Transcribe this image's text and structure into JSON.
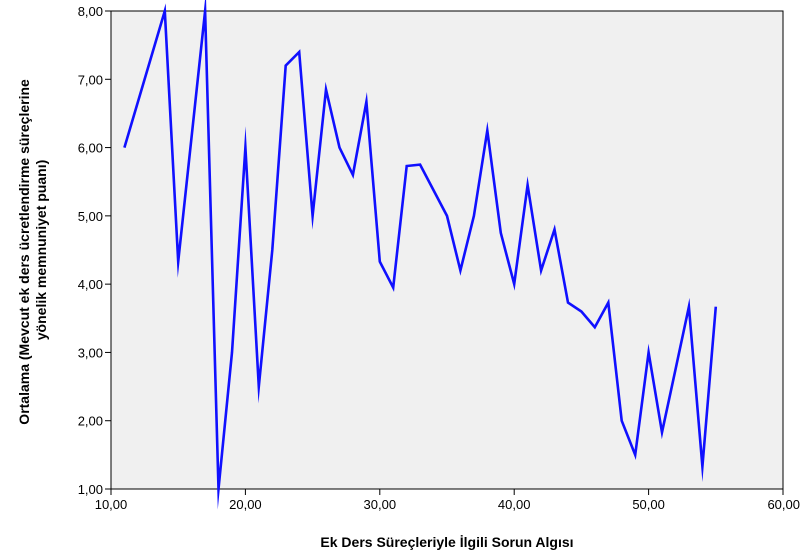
{
  "chart_data": {
    "type": "line",
    "title": "",
    "xlabel": "Ek Ders Süreçleriyle İlgili Sorun Algısı",
    "ylabel": "Ortalama (Mevcut ek ders ücretlendirme süreçlerine yönelik memnuniyet puanı)",
    "ylabel_lines": [
      "Ortalama (Mevcut ek ders ücretlendirme süreçlerine",
      "yönelik memnuniyet puanı)"
    ],
    "xlim": [
      10,
      60
    ],
    "ylim": [
      1,
      8
    ],
    "xticks": [
      10,
      20,
      30,
      40,
      50,
      60
    ],
    "yticks": [
      1,
      2,
      3,
      4,
      5,
      6,
      7,
      8
    ],
    "xtick_labels": [
      "10,00",
      "20,00",
      "30,00",
      "40,00",
      "50,00",
      "60,00"
    ],
    "ytick_labels": [
      "1,00",
      "2,00",
      "3,00",
      "4,00",
      "5,00",
      "6,00",
      "7,00",
      "8,00"
    ],
    "grid": false,
    "plot_background": "#f0f0f0",
    "line_color": "#1010ff",
    "series": [
      {
        "x": [
          11,
          14,
          15,
          17,
          18,
          19,
          20,
          21,
          22,
          23,
          24,
          25,
          26,
          27,
          28,
          29,
          30,
          31,
          32,
          33,
          35,
          36,
          37,
          38,
          39,
          40,
          41,
          42,
          43,
          44,
          45,
          46,
          47,
          48,
          49,
          50,
          51,
          52,
          53,
          54,
          55
        ],
        "y": [
          6.0,
          8.0,
          4.33,
          8.0,
          1.0,
          3.0,
          6.0,
          2.5,
          4.5,
          7.2,
          7.4,
          5.0,
          6.85,
          6.0,
          5.6,
          6.67,
          4.33,
          3.95,
          5.73,
          5.75,
          5.0,
          4.2,
          5.0,
          6.25,
          4.75,
          4.0,
          5.45,
          4.2,
          4.8,
          3.73,
          3.6,
          3.37,
          3.73,
          2.0,
          1.5,
          3.0,
          1.83,
          2.75,
          3.67,
          1.33,
          3.67
        ]
      }
    ]
  }
}
